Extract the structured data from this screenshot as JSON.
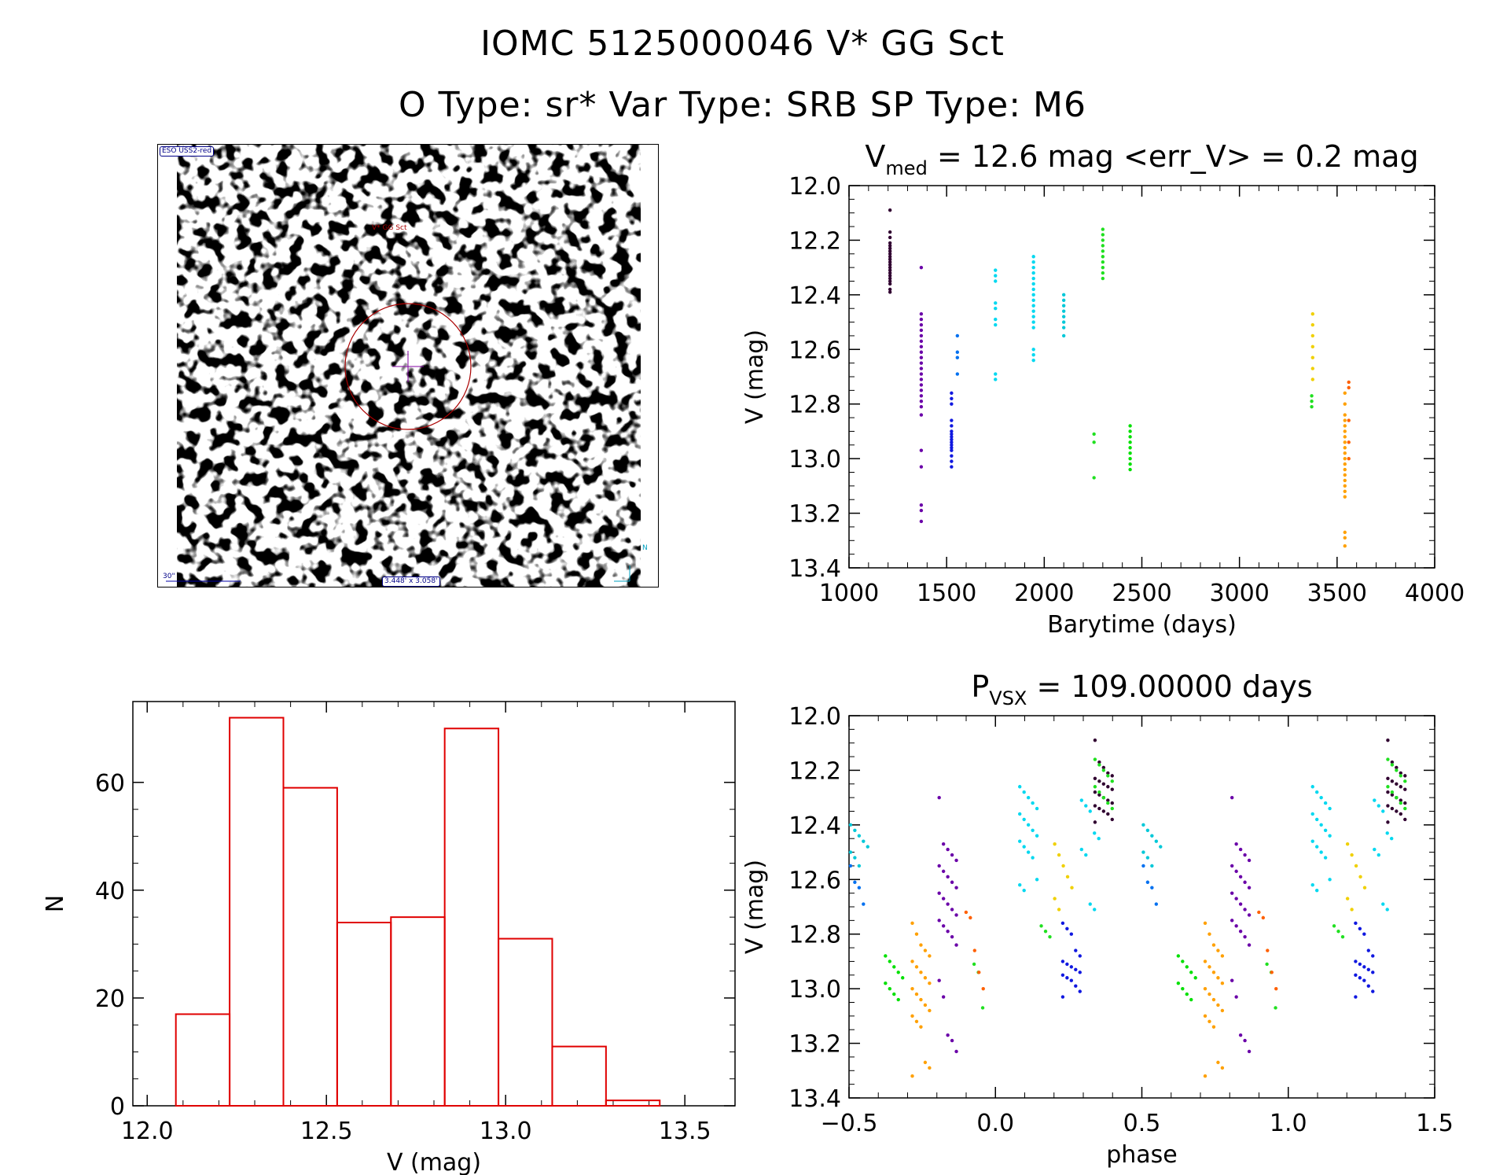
{
  "header": {
    "title_line1": "IOMC 5125000046    V* GG Sct",
    "title_line2": "O Type: sr*   Var Type: SRB   SP Type: M6"
  },
  "image_panel": {
    "survey_label": "ESO USS2-red",
    "target_label": "V* GG Sct",
    "scale_label": "30\"",
    "fov_label": "3.448' x 3.058'",
    "compass_label": "N"
  },
  "colors": {
    "histogram": "#e00000",
    "season_colors": [
      "#300030",
      "#6a00a8",
      "#1018e0",
      "#0070f0",
      "#00d8f0",
      "#00c8d8",
      "#20e020",
      "#00e000",
      "#f0d000",
      "#ffa000",
      "#ff6000",
      "#e01010"
    ]
  },
  "chart_data": [
    {
      "type": "scatter",
      "id": "light-curve",
      "title_main": "V",
      "title_sub": "med",
      "title_rest": " = 12.6 mag <err_V> = 0.2 mag",
      "xlabel": "Barytime (days)",
      "ylabel": "V (mag)",
      "xlim": [
        1000,
        4000
      ],
      "ylim": [
        13.4,
        12.0
      ],
      "xticks": [
        "1000",
        "1500",
        "2000",
        "2500",
        "3000",
        "3500",
        "4000"
      ],
      "yticks": [
        "12.0",
        "12.2",
        "12.4",
        "12.6",
        "12.8",
        "13.0",
        "13.2",
        "13.4"
      ],
      "seasons": [
        {
          "t": 1210,
          "mags": [
            12.09,
            12.17,
            12.19,
            12.21,
            12.22,
            12.23,
            12.24,
            12.25,
            12.26,
            12.27,
            12.28,
            12.29,
            12.3,
            12.31,
            12.32,
            12.33,
            12.34,
            12.35,
            12.36,
            12.38,
            12.39
          ],
          "color": "#300030"
        },
        {
          "t": 1370,
          "mags": [
            12.3,
            12.47,
            12.49,
            12.51,
            12.53,
            12.55,
            12.57,
            12.59,
            12.61,
            12.63,
            12.65,
            12.67,
            12.69,
            12.71,
            12.73,
            12.75,
            12.77,
            12.79,
            12.81,
            12.84,
            12.97,
            13.03,
            13.17,
            13.19,
            13.23
          ],
          "color": "#6a00a8"
        },
        {
          "t": 1525,
          "mags": [
            12.76,
            12.78,
            12.8,
            12.86,
            12.88,
            12.9,
            12.91,
            12.92,
            12.93,
            12.94,
            12.95,
            12.96,
            12.97,
            12.99,
            13.01,
            13.03
          ],
          "color": "#1018e0"
        },
        {
          "t": 1555,
          "mags": [
            12.55,
            12.61,
            12.63,
            12.69
          ],
          "color": "#0070f0"
        },
        {
          "t": 1750,
          "mags": [
            12.31,
            12.33,
            12.35,
            12.43,
            12.45,
            12.49,
            12.51,
            12.69,
            12.71
          ],
          "color": "#00d8f0"
        },
        {
          "t": 1945,
          "mags": [
            12.26,
            12.28,
            12.3,
            12.32,
            12.34,
            12.36,
            12.38,
            12.4,
            12.42,
            12.44,
            12.46,
            12.48,
            12.5,
            12.52,
            12.6,
            12.62,
            12.64
          ],
          "color": "#00d8f0"
        },
        {
          "t": 2100,
          "mags": [
            12.4,
            12.42,
            12.44,
            12.46,
            12.48,
            12.5,
            12.52,
            12.55
          ],
          "color": "#00c8d8"
        },
        {
          "t": 2255,
          "mags": [
            12.91,
            12.94,
            13.07
          ],
          "color": "#20e020"
        },
        {
          "t": 2300,
          "mags": [
            12.16,
            12.18,
            12.2,
            12.22,
            12.24,
            12.26,
            12.28,
            12.3,
            12.32,
            12.34
          ],
          "color": "#20e020"
        },
        {
          "t": 2440,
          "mags": [
            12.88,
            12.9,
            12.92,
            12.94,
            12.96,
            12.98,
            13.0,
            13.02,
            13.04
          ],
          "color": "#00e000"
        },
        {
          "t": 3375,
          "mags": [
            12.47,
            12.51,
            12.55,
            12.59,
            12.63,
            12.67,
            12.71
          ],
          "color": "#f0d000"
        },
        {
          "t": 3370,
          "mags": [
            12.77,
            12.79,
            12.81
          ],
          "color": "#20e020"
        },
        {
          "t": 3540,
          "mags": [
            12.76,
            12.8,
            12.84,
            12.86,
            12.88,
            12.9,
            12.92,
            12.94,
            12.96,
            12.98,
            13.0,
            13.02,
            13.04,
            13.06,
            13.08,
            13.1,
            13.12,
            13.14,
            13.27,
            13.29,
            13.32
          ],
          "color": "#ffa000"
        },
        {
          "t": 3560,
          "mags": [
            12.72,
            12.74,
            12.86,
            12.94,
            13.0
          ],
          "color": "#ff6000"
        }
      ]
    },
    {
      "type": "bar",
      "id": "histogram",
      "xlabel": "V (mag)",
      "ylabel": "N",
      "xlim": [
        11.96,
        13.64
      ],
      "ylim": [
        0,
        75
      ],
      "xticks": [
        "12.0",
        "12.5",
        "13.0",
        "13.5"
      ],
      "yticks": [
        "0",
        "20",
        "40",
        "60"
      ],
      "bin_edges": [
        12.08,
        12.23,
        12.38,
        12.53,
        12.68,
        12.83,
        12.98,
        13.13,
        13.28,
        13.43
      ],
      "values": [
        17,
        72,
        59,
        34,
        35,
        70,
        31,
        11,
        1
      ]
    },
    {
      "type": "scatter",
      "id": "phased-curve",
      "title_main": "P",
      "title_sub": "VSX",
      "title_rest": " = 109.00000 days",
      "xlabel": "phase",
      "ylabel": "V (mag)",
      "period_days": 109.0,
      "xlim": [
        -0.5,
        1.5
      ],
      "ylim": [
        13.4,
        12.0
      ],
      "xticks": [
        "−0.5",
        "0.0",
        "0.5",
        "1.0",
        "1.5"
      ],
      "yticks": [
        "12.0",
        "12.2",
        "12.4",
        "12.6",
        "12.8",
        "13.0",
        "13.2",
        "13.4"
      ]
    }
  ]
}
